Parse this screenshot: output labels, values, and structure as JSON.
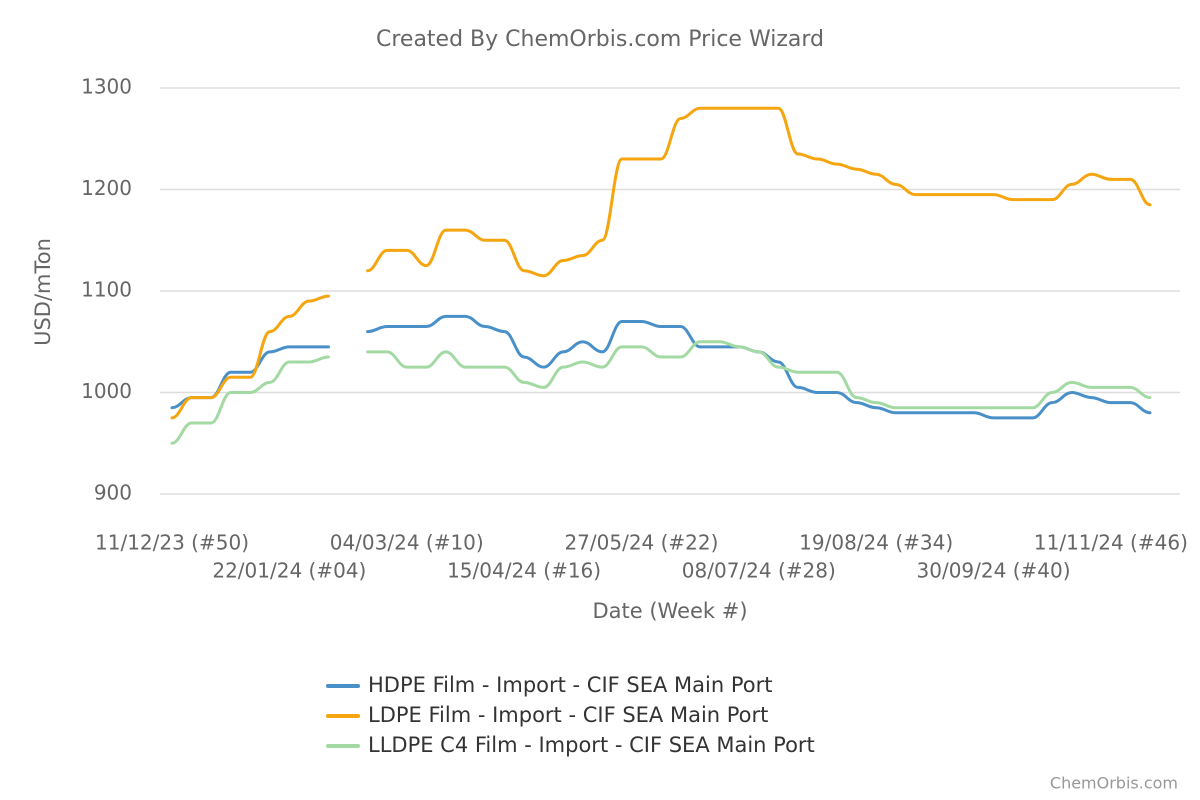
{
  "chart_data": {
    "type": "line",
    "title": "Created By ChemOrbis.com Price Wizard",
    "xlabel": "Date (Week #)",
    "ylabel": "USD/mTon",
    "credit": "ChemOrbis.com",
    "categories": [
      "11/12/23 (#50)",
      null,
      null,
      null,
      null,
      null,
      "22/01/24 (#04)",
      null,
      null,
      null,
      null,
      null,
      "04/03/24 (#10)",
      null,
      null,
      null,
      null,
      null,
      "15/04/24 (#16)",
      null,
      null,
      null,
      null,
      null,
      "27/05/24 (#22)",
      null,
      null,
      null,
      null,
      null,
      "08/07/24 (#28)",
      null,
      null,
      null,
      null,
      null,
      "19/08/24 (#34)",
      null,
      null,
      null,
      null,
      null,
      "30/09/24 (#40)",
      null,
      null,
      null,
      null,
      null,
      "11/11/24 (#46)",
      null,
      null
    ],
    "series": [
      {
        "name": "HDPE Film - Import - CIF SEA Main Port",
        "color": "#4a90c8",
        "values": [
          985,
          995,
          995,
          1020,
          1020,
          1040,
          1045,
          1045,
          1045,
          null,
          1060,
          1065,
          1065,
          1065,
          1075,
          1075,
          1065,
          1060,
          1035,
          1025,
          1040,
          1050,
          1040,
          1070,
          1070,
          1065,
          1065,
          1045,
          1045,
          1045,
          1040,
          1030,
          1005,
          1000,
          1000,
          990,
          985,
          980,
          980,
          980,
          980,
          980,
          975,
          975,
          975,
          990,
          1000,
          995,
          990,
          990,
          980
        ]
      },
      {
        "name": "LDPE Film - Import - CIF SEA Main Port",
        "color": "#f5a50f",
        "values": [
          975,
          995,
          995,
          1015,
          1015,
          1060,
          1075,
          1090,
          1095,
          null,
          1120,
          1140,
          1140,
          1125,
          1160,
          1160,
          1150,
          1150,
          1120,
          1115,
          1130,
          1135,
          1150,
          1230,
          1230,
          1230,
          1270,
          1280,
          1280,
          1280,
          1280,
          1280,
          1235,
          1230,
          1225,
          1220,
          1215,
          1205,
          1195,
          1195,
          1195,
          1195,
          1195,
          1190,
          1190,
          1190,
          1205,
          1215,
          1210,
          1210,
          1185
        ]
      },
      {
        "name": "LLDPE C4 Film - Import - CIF SEA Main Port",
        "color": "#a3d9a3",
        "values": [
          950,
          970,
          970,
          1000,
          1000,
          1010,
          1030,
          1030,
          1035,
          null,
          1040,
          1040,
          1025,
          1025,
          1040,
          1025,
          1025,
          1025,
          1010,
          1005,
          1025,
          1030,
          1025,
          1045,
          1045,
          1035,
          1035,
          1050,
          1050,
          1045,
          1040,
          1025,
          1020,
          1020,
          1020,
          995,
          990,
          985,
          985,
          985,
          985,
          985,
          985,
          985,
          985,
          1000,
          1010,
          1005,
          1005,
          1005,
          995
        ]
      }
    ],
    "ylim": [
      900,
      1300
    ],
    "yticks": [
      900,
      1000,
      1100,
      1200,
      1300
    ],
    "grid": true
  }
}
